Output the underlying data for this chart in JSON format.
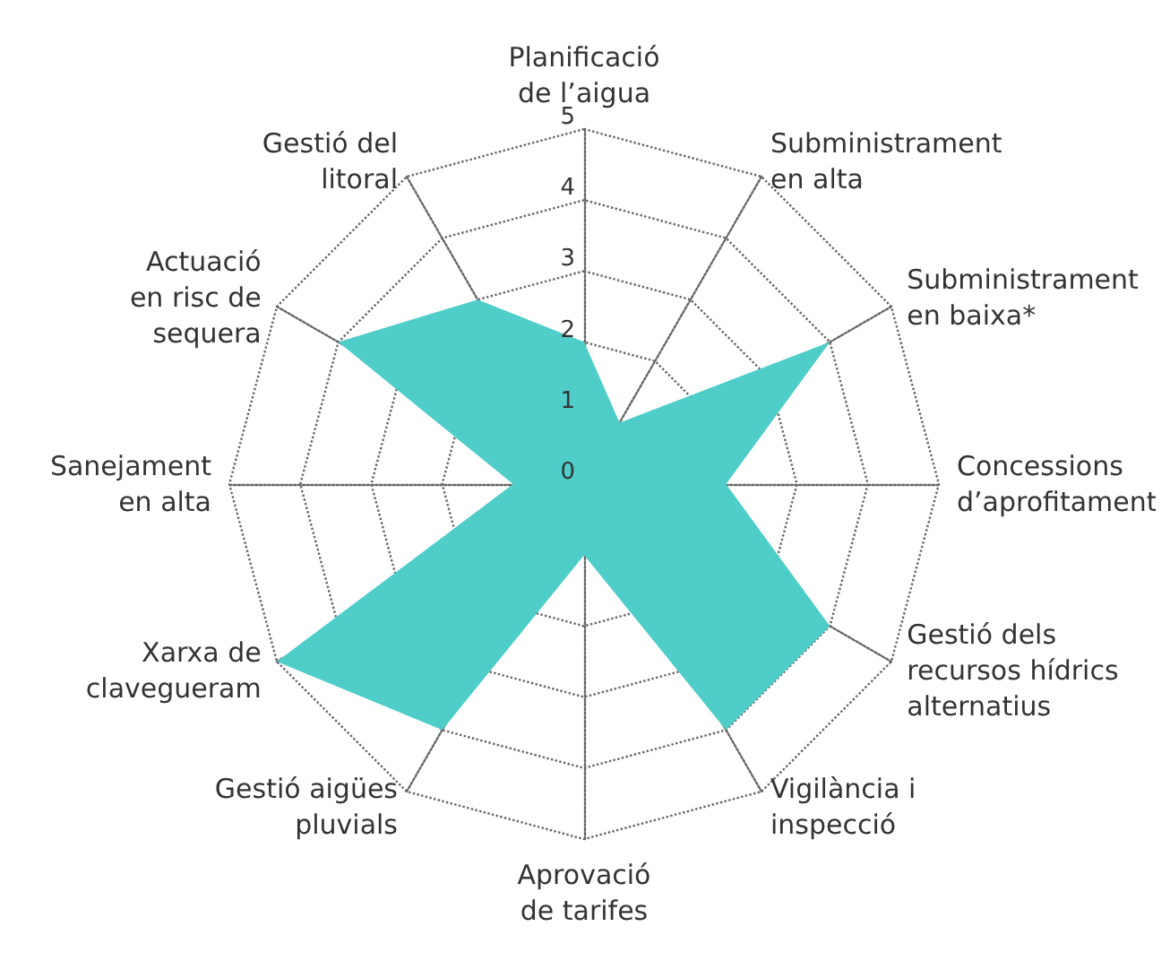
{
  "chart_data": {
    "type": "radar",
    "categories": [
      "Planificació\nde l’aigua",
      "Subministrament\nen alta",
      "Subministrament\nen baixa*",
      "Concessions\nd’aprofitament",
      "Gestió dels\nrecursos hídrics\nalternatius",
      "Vigilància i\ninspecció",
      "Aprovació\nde tarifes",
      "Gestió aigües\npluvials",
      "Xarxa de\nclavegueram",
      "Sanejament\nen alta",
      "Actuació\nen risc de\nsequera",
      "Gestió del\nlitoral"
    ],
    "series": [
      {
        "color": "#4ecdc9",
        "values": [
          2,
          1,
          4,
          2,
          4,
          4,
          1,
          4,
          5,
          1,
          4,
          3
        ]
      }
    ],
    "ylim": [
      0,
      5
    ],
    "yticks": [
      0,
      1,
      2,
      3,
      4,
      5
    ],
    "grid": true
  }
}
